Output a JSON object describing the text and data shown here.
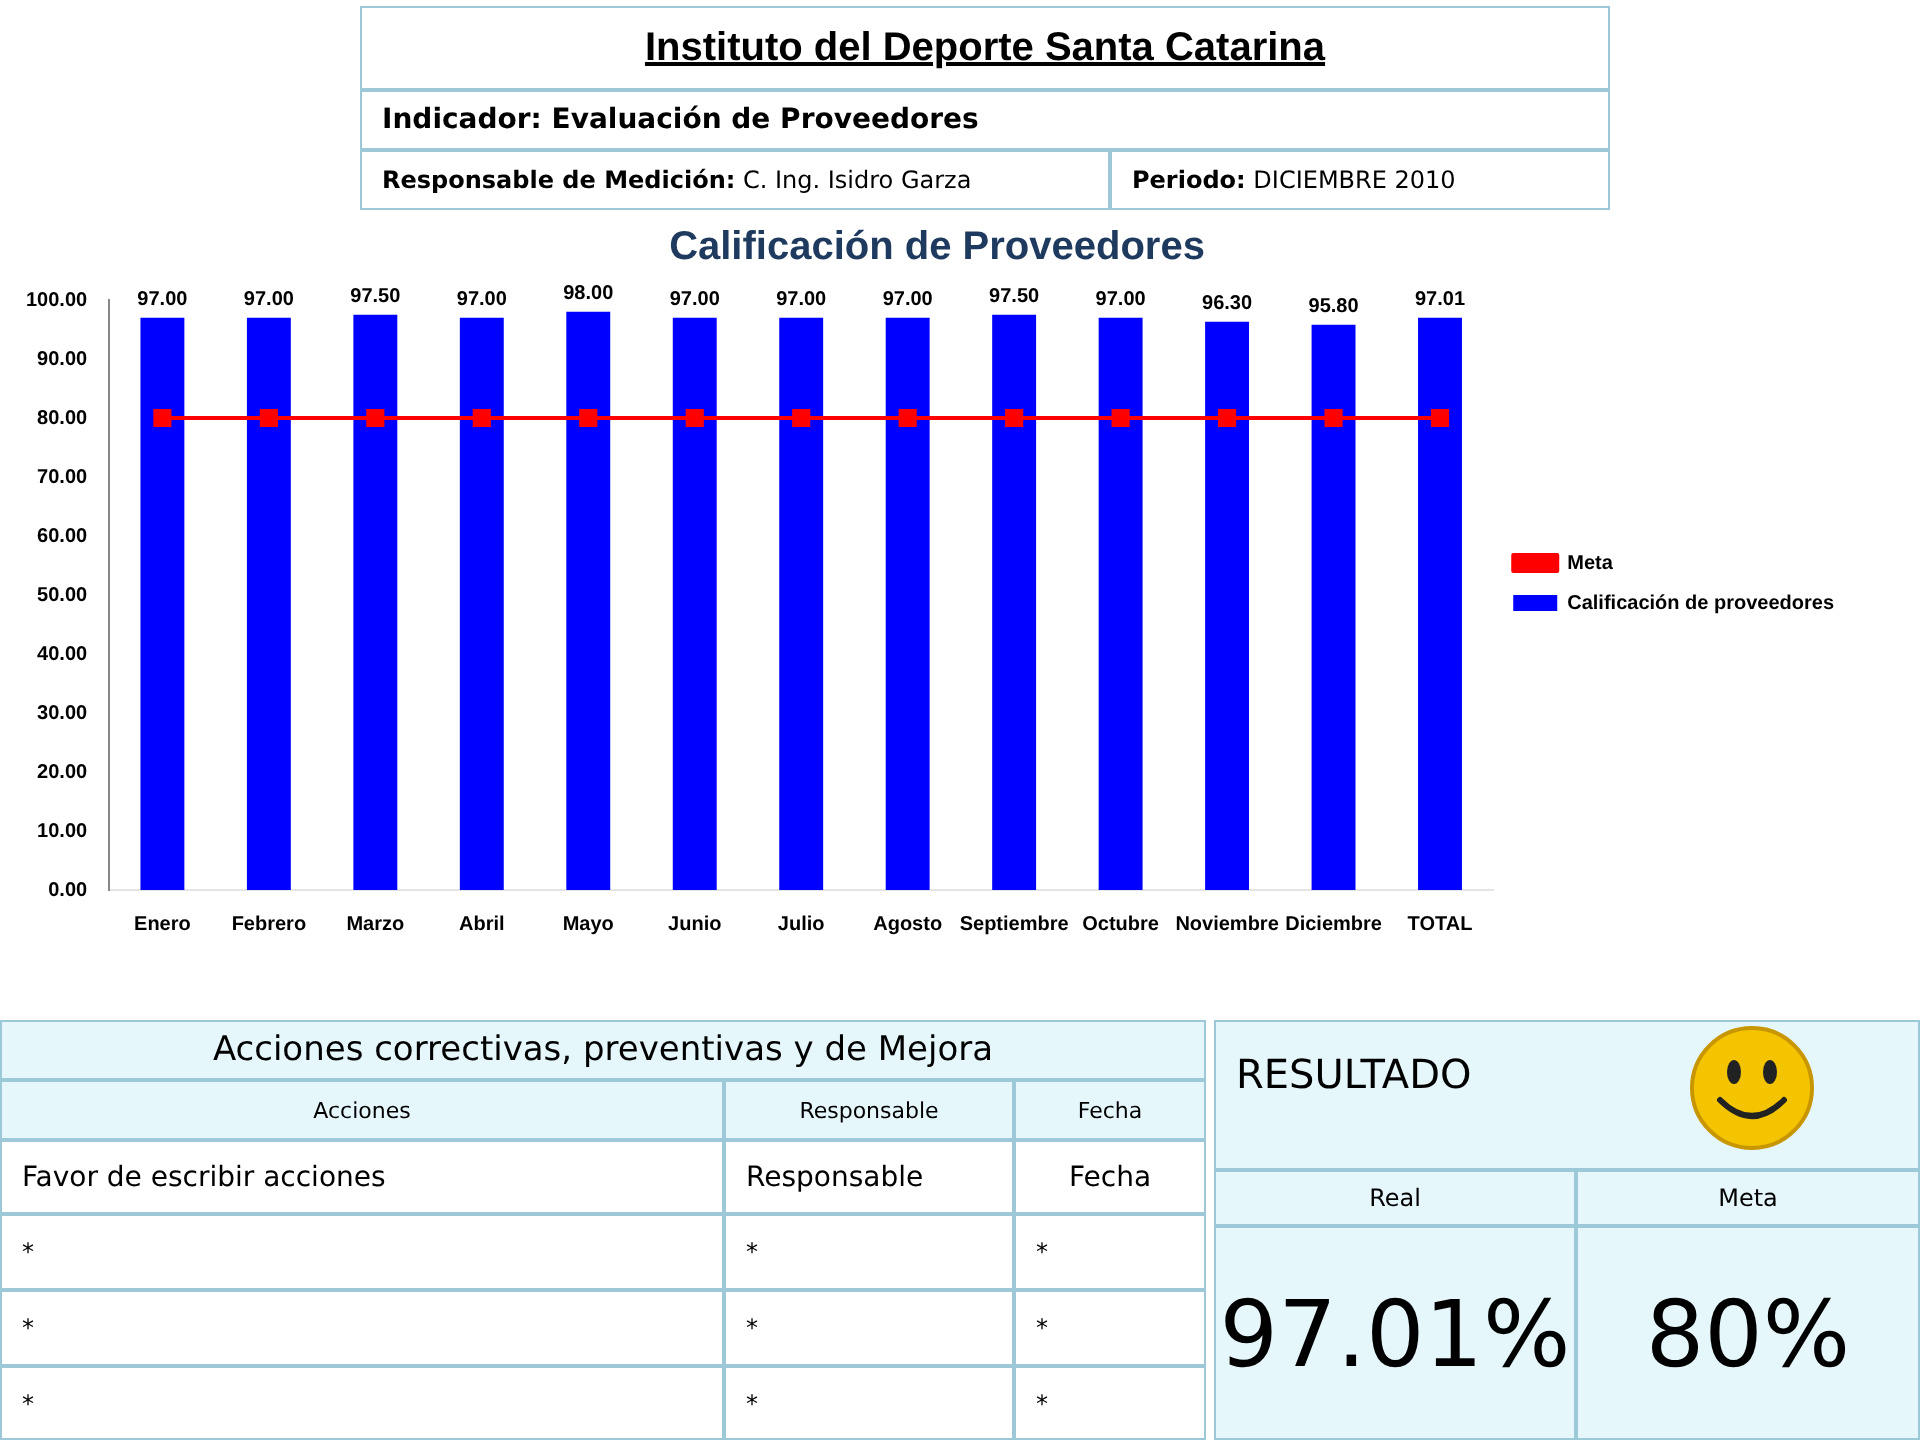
{
  "chart_data": {
    "type": "bar",
    "title": "Calificación de Proveedores",
    "categories": [
      "Enero",
      "Febrero",
      "Marzo",
      "Abril",
      "Mayo",
      "Junio",
      "Julio",
      "Agosto",
      "Septiembre",
      "Octubre",
      "Noviembre",
      "Diciembre",
      "TOTAL"
    ],
    "series": [
      {
        "name": "Calificación de proveedores",
        "color": "#0000ff",
        "values": [
          97,
          97,
          97.5,
          97,
          98,
          97,
          97,
          97,
          97.5,
          97,
          96.3,
          95.8,
          97.01
        ],
        "value_labels": [
          "97.00",
          "97.00",
          "97.50",
          "97.00",
          "98.00",
          "97.00",
          "97.00",
          "97.00",
          "97.50",
          "97.00",
          "96.30",
          "95.80",
          "97.01"
        ]
      },
      {
        "name": "Meta",
        "type": "line",
        "color": "#ff0000",
        "values": [
          80,
          80,
          80,
          80,
          80,
          80,
          80,
          80,
          80,
          80,
          80,
          80,
          80
        ]
      }
    ],
    "ylim": [
      0,
      100
    ],
    "yticks": [
      {
        "value": 0,
        "label": "0.00"
      },
      {
        "value": 10,
        "label": "10.00"
      },
      {
        "value": 20,
        "label": "20.00"
      },
      {
        "value": 30,
        "label": "30.00"
      },
      {
        "value": 40,
        "label": "40.00"
      },
      {
        "value": 50,
        "label": "50.00"
      },
      {
        "value": 60,
        "label": "60.00"
      },
      {
        "value": 70,
        "label": "70.00"
      },
      {
        "value": 80,
        "label": "80.00"
      },
      {
        "value": 90,
        "label": "90.00"
      },
      {
        "value": 100,
        "label": "100.00"
      }
    ],
    "grid": false,
    "legend": "right",
    "marker": "square",
    "annotations": [
      "Instituto del Deporte Santa Catarina",
      "Indicador: Evaluación de Proveedores",
      "Responsable de Medición: C. Ing. Isidro Garza",
      "Periodo: DICIEMBRE 2010",
      "Acciones correctivas, preventivas y de Mejora",
      "Acciones",
      "Responsable",
      "Fecha",
      "Favor de escribir acciones",
      "Responsable",
      "Fecha",
      "*",
      "*",
      "*",
      "*",
      "*",
      "*",
      "*",
      "*",
      "*",
      "RESULTADO",
      "Real",
      "Meta",
      "97.01%",
      "80%"
    ]
  }
}
